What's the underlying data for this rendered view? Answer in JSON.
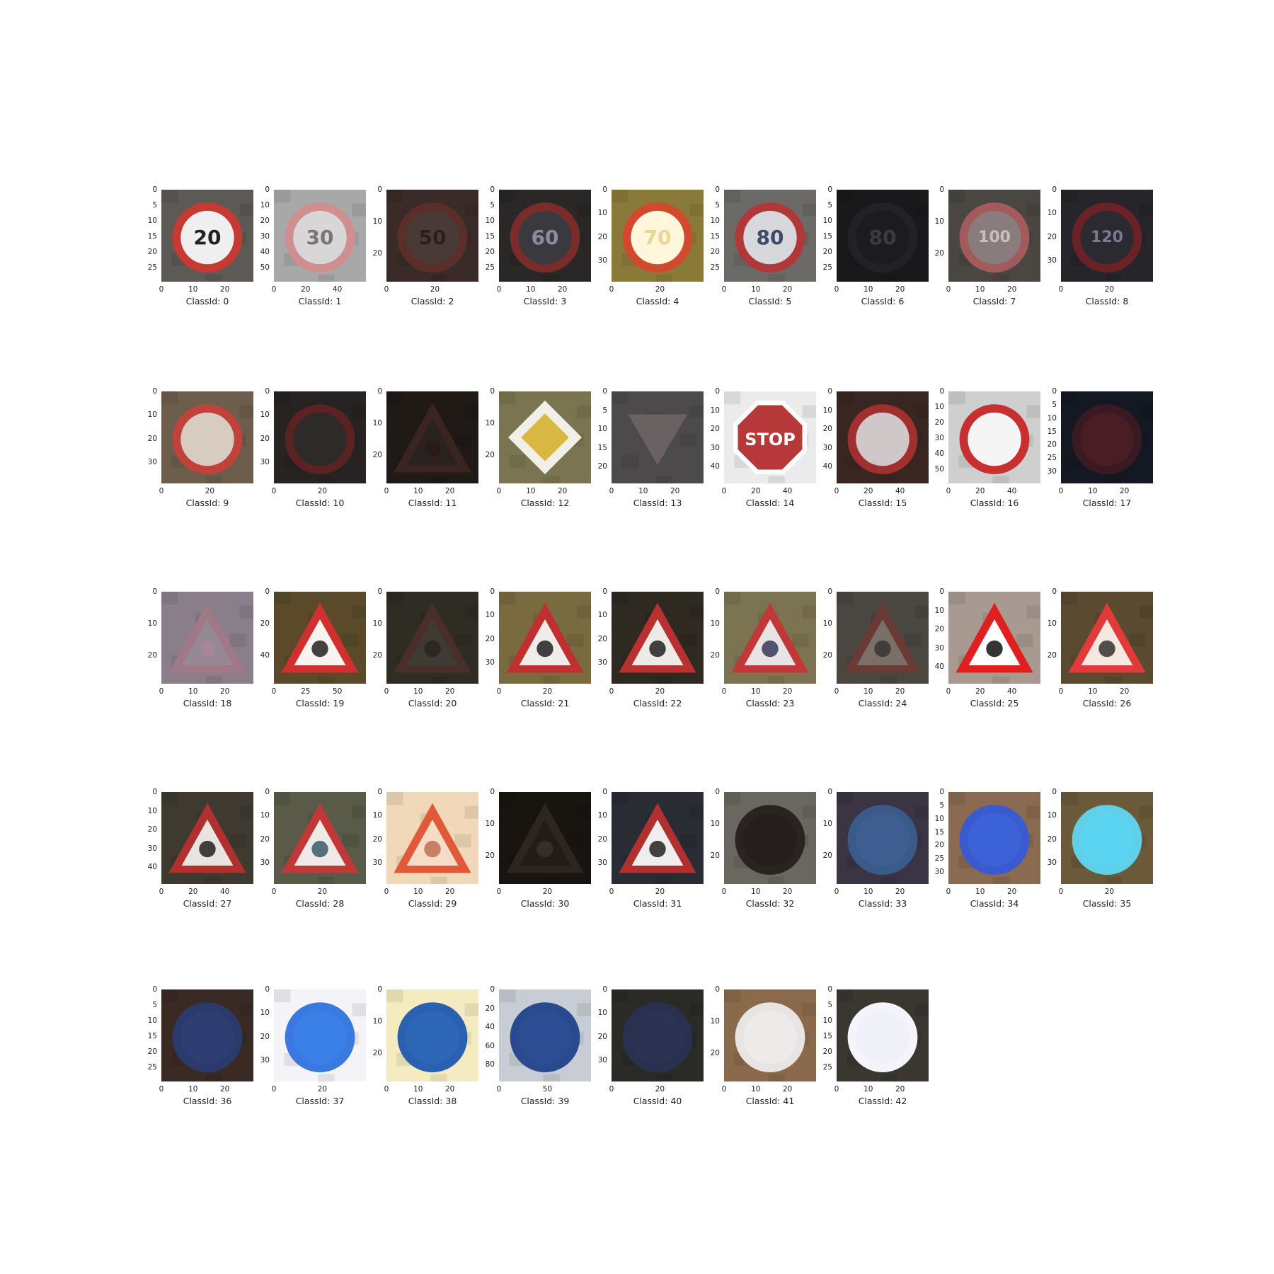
{
  "panels": [
    {
      "label": "ClassId: 0",
      "yticks": [
        "0",
        "5",
        "10",
        "15",
        "20",
        "25"
      ],
      "xticks": [
        "0",
        "10",
        "20"
      ],
      "bg": "#5d5a55",
      "sign": "circle",
      "ring": "#c73a34",
      "fill": "#efefef",
      "text": "20",
      "ink": "#222222"
    },
    {
      "label": "ClassId: 1",
      "yticks": [
        "0",
        "10",
        "20",
        "30",
        "40",
        "50"
      ],
      "xticks": [
        "0",
        "20",
        "40"
      ],
      "bg": "#a9a8a8",
      "sign": "circle",
      "ring": "#cf8f90",
      "fill": "#d8d6d6",
      "text": "30",
      "ink": "#777777"
    },
    {
      "label": "ClassId: 2",
      "yticks": [
        "0",
        "10",
        "20"
      ],
      "xticks": [
        "0",
        "20"
      ],
      "bg": "#3a2b28",
      "sign": "circle",
      "ring": "#5a2f2a",
      "fill": "#4a3a36",
      "text": "50",
      "ink": "#2a1f1d"
    },
    {
      "label": "ClassId: 3",
      "yticks": [
        "0",
        "5",
        "10",
        "15",
        "20",
        "25"
      ],
      "xticks": [
        "0",
        "10",
        "20"
      ],
      "bg": "#2a2826",
      "sign": "circle",
      "ring": "#7a2c2a",
      "fill": "#3a3a3e",
      "text": "60",
      "ink": "#8a8aa0"
    },
    {
      "label": "ClassId: 4",
      "yticks": [
        "0",
        "10",
        "20",
        "30"
      ],
      "xticks": [
        "0",
        "20"
      ],
      "bg": "#8a7a3a",
      "sign": "circle",
      "ring": "#d24a2e",
      "fill": "#fff6dc",
      "text": "70",
      "ink": "#e8d890"
    },
    {
      "label": "ClassId: 5",
      "yticks": [
        "0",
        "5",
        "10",
        "15",
        "20",
        "25"
      ],
      "xticks": [
        "0",
        "10",
        "20"
      ],
      "bg": "#6b6a66",
      "sign": "circle",
      "ring": "#b03838",
      "fill": "#d8d8dc",
      "text": "80",
      "ink": "#404a6a"
    },
    {
      "label": "ClassId: 6",
      "yticks": [
        "0",
        "5",
        "10",
        "15",
        "20",
        "25"
      ],
      "xticks": [
        "0",
        "10",
        "20"
      ],
      "bg": "#19191c",
      "sign": "circle",
      "ring": "#222226",
      "fill": "#1c1c20",
      "text": "80",
      "ink": "#3a3a40"
    },
    {
      "label": "ClassId: 7",
      "yticks": [
        "0",
        "10",
        "20"
      ],
      "xticks": [
        "0",
        "10",
        "20"
      ],
      "bg": "#4a4642",
      "sign": "circle",
      "ring": "#a25a5a",
      "fill": "#8a7c7c",
      "text": "100",
      "ink": "#c8c0c0"
    },
    {
      "label": "ClassId: 8",
      "yticks": [
        "0",
        "10",
        "20",
        "30"
      ],
      "xticks": [
        "0",
        "20"
      ],
      "bg": "#25252a",
      "sign": "circle",
      "ring": "#6a2226",
      "fill": "#2a2a30",
      "text": "120",
      "ink": "#7a7a90"
    },
    {
      "label": "ClassId: 9",
      "yticks": [
        "0",
        "10",
        "20",
        "30"
      ],
      "xticks": [
        "0",
        "20"
      ],
      "bg": "#6d5e4c",
      "sign": "circle",
      "ring": "#c0423a",
      "fill": "#d8ccc0",
      "text": "",
      "ink": "#333333"
    },
    {
      "label": "ClassId: 10",
      "yticks": [
        "0",
        "10",
        "20",
        "30"
      ],
      "xticks": [
        "0",
        "20"
      ],
      "bg": "#262322",
      "sign": "circle",
      "ring": "#5a2222",
      "fill": "#2e2a2a",
      "text": "",
      "ink": "#8a2020"
    },
    {
      "label": "ClassId: 11",
      "yticks": [
        "0",
        "10",
        "20"
      ],
      "xticks": [
        "0",
        "10",
        "20"
      ],
      "bg": "#1f1a16",
      "sign": "triangle",
      "ring": "#3a2420",
      "fill": "#2a221e",
      "text": "",
      "ink": "#2a1a16"
    },
    {
      "label": "ClassId: 12",
      "yticks": [
        "0",
        "10",
        "20"
      ],
      "xticks": [
        "0",
        "10",
        "20"
      ],
      "bg": "#7a7550",
      "sign": "diamond",
      "ring": "#f0f0e8",
      "fill": "#d8b840",
      "text": "",
      "ink": "#333333"
    },
    {
      "label": "ClassId: 13",
      "yticks": [
        "0",
        "5",
        "10",
        "15",
        "20"
      ],
      "xticks": [
        "0",
        "10",
        "20"
      ],
      "bg": "#4c4a4a",
      "sign": "invtriangle",
      "ring": "#5a4a4a",
      "fill": "#6a6262",
      "text": "",
      "ink": "#333333"
    },
    {
      "label": "ClassId: 14",
      "yticks": [
        "0",
        "10",
        "20",
        "30",
        "40"
      ],
      "xticks": [
        "0",
        "20",
        "40"
      ],
      "bg": "#ebebeb",
      "sign": "octagon",
      "ring": "#ffffff",
      "fill": "#b73838",
      "text": "STOP",
      "ink": "#ffffff"
    },
    {
      "label": "ClassId: 15",
      "yticks": [
        "0",
        "10",
        "20",
        "30",
        "40"
      ],
      "xticks": [
        "0",
        "20",
        "40"
      ],
      "bg": "#3a2620",
      "sign": "circle",
      "ring": "#a03030",
      "fill": "#d0c8c8",
      "text": "",
      "ink": "#333333"
    },
    {
      "label": "ClassId: 16",
      "yticks": [
        "0",
        "10",
        "20",
        "30",
        "40",
        "50"
      ],
      "xticks": [
        "0",
        "20",
        "40"
      ],
      "bg": "#cfcfcf",
      "sign": "circle",
      "ring": "#c83030",
      "fill": "#f5f5f5",
      "text": "",
      "ink": "#222222"
    },
    {
      "label": "ClassId: 17",
      "yticks": [
        "0",
        "5",
        "10",
        "15",
        "20",
        "25",
        "30"
      ],
      "xticks": [
        "0",
        "10",
        "20"
      ],
      "bg": "#141822",
      "sign": "circle",
      "ring": "#3a1a22",
      "fill": "#4a1c24",
      "text": "",
      "ink": "#6a4a50"
    },
    {
      "label": "ClassId: 18",
      "yticks": [
        "0",
        "10",
        "20"
      ],
      "xticks": [
        "0",
        "10",
        "20"
      ],
      "bg": "#8a7e8a",
      "sign": "triangle",
      "ring": "#a07888",
      "fill": "#948894",
      "text": "",
      "ink": "#a88898"
    },
    {
      "label": "ClassId: 19",
      "yticks": [
        "0",
        "20",
        "40"
      ],
      "xticks": [
        "0",
        "25",
        "50"
      ],
      "bg": "#5a4a2a",
      "sign": "triangle",
      "ring": "#d03030",
      "fill": "#f8f4f0",
      "text": "",
      "ink": "#222222"
    },
    {
      "label": "ClassId: 20",
      "yticks": [
        "0",
        "10",
        "20"
      ],
      "xticks": [
        "0",
        "10",
        "20"
      ],
      "bg": "#2f2c24",
      "sign": "triangle",
      "ring": "#4a2e2a",
      "fill": "#3e3a34",
      "text": "",
      "ink": "#2a2420"
    },
    {
      "label": "ClassId: 21",
      "yticks": [
        "0",
        "10",
        "20",
        "30"
      ],
      "xticks": [
        "0",
        "20"
      ],
      "bg": "#7a6a40",
      "sign": "triangle",
      "ring": "#c03030",
      "fill": "#f0ece8",
      "text": "",
      "ink": "#222222"
    },
    {
      "label": "ClassId: 22",
      "yticks": [
        "0",
        "10",
        "20",
        "30"
      ],
      "xticks": [
        "0",
        "20"
      ],
      "bg": "#2e2a22",
      "sign": "triangle",
      "ring": "#b83030",
      "fill": "#ecebe8",
      "text": "",
      "ink": "#222222"
    },
    {
      "label": "ClassId: 23",
      "yticks": [
        "0",
        "10",
        "20"
      ],
      "xticks": [
        "0",
        "10",
        "20"
      ],
      "bg": "#7c7450",
      "sign": "triangle",
      "ring": "#c03838",
      "fill": "#e8e4e4",
      "text": "",
      "ink": "#3a3a5a"
    },
    {
      "label": "ClassId: 24",
      "yticks": [
        "0",
        "10",
        "20"
      ],
      "xticks": [
        "0",
        "10",
        "20"
      ],
      "bg": "#4a4640",
      "sign": "triangle",
      "ring": "#6a3a34",
      "fill": "#7a7068",
      "text": "",
      "ink": "#3a3430"
    },
    {
      "label": "ClassId: 25",
      "yticks": [
        "0",
        "10",
        "20",
        "30",
        "40"
      ],
      "xticks": [
        "0",
        "20",
        "40"
      ],
      "bg": "#a89a90",
      "sign": "triangle",
      "ring": "#e02020",
      "fill": "#ffffff",
      "text": "",
      "ink": "#111111"
    },
    {
      "label": "ClassId: 26",
      "yticks": [
        "0",
        "10",
        "20"
      ],
      "xticks": [
        "0",
        "10",
        "20"
      ],
      "bg": "#5a4a30",
      "sign": "triangle",
      "ring": "#e03a3a",
      "fill": "#f4e8e0",
      "text": "",
      "ink": "#333333"
    },
    {
      "label": "ClassId: 27",
      "yticks": [
        "0",
        "10",
        "20",
        "30",
        "40"
      ],
      "xticks": [
        "0",
        "20",
        "40"
      ],
      "bg": "#3e3a30",
      "sign": "triangle",
      "ring": "#b03030",
      "fill": "#e8e4e0",
      "text": "",
      "ink": "#222222"
    },
    {
      "label": "ClassId: 28",
      "yticks": [
        "0",
        "10",
        "20",
        "30"
      ],
      "xticks": [
        "0",
        "20"
      ],
      "bg": "#5a5a48",
      "sign": "triangle",
      "ring": "#c03838",
      "fill": "#eeeae8",
      "text": "",
      "ink": "#3a5a6a"
    },
    {
      "label": "ClassId: 29",
      "yticks": [
        "0",
        "10",
        "20",
        "30"
      ],
      "xticks": [
        "0",
        "10",
        "20"
      ],
      "bg": "#f0d8b8",
      "sign": "triangle",
      "ring": "#e05a3a",
      "fill": "#f4dcc8",
      "text": "",
      "ink": "#c07050"
    },
    {
      "label": "ClassId: 30",
      "yticks": [
        "0",
        "10",
        "20"
      ],
      "xticks": [
        "0",
        "20"
      ],
      "bg": "#18140f",
      "sign": "triangle",
      "ring": "#2e2420",
      "fill": "#221c18",
      "text": "",
      "ink": "#3a302a"
    },
    {
      "label": "ClassId: 31",
      "yticks": [
        "0",
        "10",
        "20",
        "30"
      ],
      "xticks": [
        "0",
        "20"
      ],
      "bg": "#2a2c34",
      "sign": "triangle",
      "ring": "#b03030",
      "fill": "#eeeeee",
      "text": "",
      "ink": "#222222"
    },
    {
      "label": "ClassId: 32",
      "yticks": [
        "0",
        "10",
        "20"
      ],
      "xticks": [
        "0",
        "10",
        "20"
      ],
      "bg": "#6a6660",
      "sign": "circle",
      "ring": "#2a2420",
      "fill": "#241f1c",
      "text": "",
      "ink": "#241f1c"
    },
    {
      "label": "ClassId: 33",
      "yticks": [
        "0",
        "10",
        "20"
      ],
      "xticks": [
        "0",
        "10",
        "20"
      ],
      "bg": "#3a3444",
      "sign": "circle",
      "ring": "#3a5a8a",
      "fill": "#3e5e92",
      "text": "",
      "ink": "#9ab0d0"
    },
    {
      "label": "ClassId: 34",
      "yticks": [
        "0",
        "5",
        "10",
        "15",
        "20",
        "25",
        "30"
      ],
      "xticks": [
        "0",
        "10",
        "20"
      ],
      "bg": "#8a6a50",
      "sign": "circle",
      "ring": "#3a5ad0",
      "fill": "#3c62d8",
      "text": "",
      "ink": "#ffffff"
    },
    {
      "label": "ClassId: 35",
      "yticks": [
        "0",
        "10",
        "20",
        "30"
      ],
      "xticks": [
        "0",
        "20"
      ],
      "bg": "#6a5a3a",
      "sign": "circle",
      "ring": "#60d0e8",
      "fill": "#5ad4f0",
      "text": "",
      "ink": "#ffffff"
    },
    {
      "label": "ClassId: 36",
      "yticks": [
        "0",
        "5",
        "10",
        "15",
        "20",
        "25"
      ],
      "xticks": [
        "0",
        "10",
        "20"
      ],
      "bg": "#3a2a24",
      "sign": "circle",
      "ring": "#2a3a6a",
      "fill": "#2e3e72",
      "text": "",
      "ink": "#5a6aa0"
    },
    {
      "label": "ClassId: 37",
      "yticks": [
        "0",
        "10",
        "20",
        "30"
      ],
      "xticks": [
        "0",
        "20"
      ],
      "bg": "#f4f4f8",
      "sign": "circle",
      "ring": "#3a7ae0",
      "fill": "#3a80e8",
      "text": "",
      "ink": "#ffffff"
    },
    {
      "label": "ClassId: 38",
      "yticks": [
        "0",
        "10",
        "20"
      ],
      "xticks": [
        "0",
        "10",
        "20"
      ],
      "bg": "#f4ecc0",
      "sign": "circle",
      "ring": "#2a60b0",
      "fill": "#2e66b8",
      "text": "",
      "ink": "#ffffff"
    },
    {
      "label": "ClassId: 39",
      "yticks": [
        "0",
        "20",
        "40",
        "60",
        "80"
      ],
      "xticks": [
        "0",
        "50"
      ],
      "bg": "#c8ccd4",
      "sign": "circle",
      "ring": "#2a4a90",
      "fill": "#2c4c94",
      "text": "",
      "ink": "#d8dce8"
    },
    {
      "label": "ClassId: 40",
      "yticks": [
        "0",
        "10",
        "20",
        "30"
      ],
      "xticks": [
        "0",
        "20"
      ],
      "bg": "#2a2a26",
      "sign": "circle",
      "ring": "#2a3050",
      "fill": "#2c3252",
      "text": "",
      "ink": "#6a7090"
    },
    {
      "label": "ClassId: 41",
      "yticks": [
        "0",
        "10",
        "20"
      ],
      "xticks": [
        "0",
        "10",
        "20"
      ],
      "bg": "#8a6a4a",
      "sign": "circle",
      "ring": "#e8e4e4",
      "fill": "#eeeaea",
      "text": "",
      "ink": "#5a4a40"
    },
    {
      "label": "ClassId: 42",
      "yticks": [
        "0",
        "5",
        "10",
        "15",
        "20",
        "25"
      ],
      "xticks": [
        "0",
        "10",
        "20"
      ],
      "bg": "#3a3630",
      "sign": "circle",
      "ring": "#f4f4fc",
      "fill": "#f0f0f8",
      "text": "",
      "ink": "#4a4a60"
    }
  ]
}
